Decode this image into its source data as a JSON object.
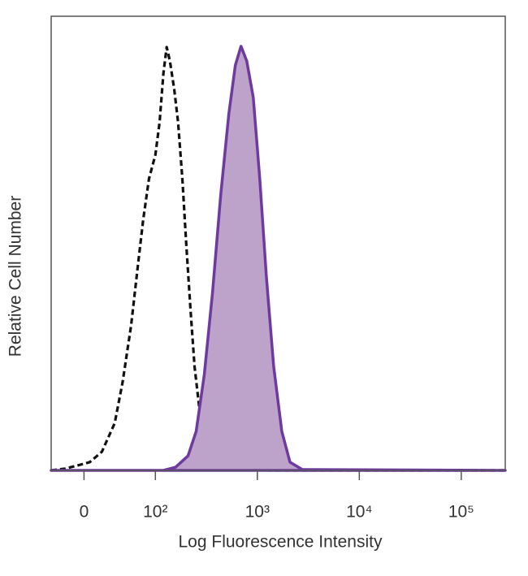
{
  "chart_data": {
    "type": "histogram-overlay",
    "xlabel": "Log Fluorescence Intensity",
    "ylabel": "Relative Cell Number",
    "xscale": "symlog",
    "xlinthresh": 100,
    "xlim": [
      -46,
      270000
    ],
    "xticks": [
      0,
      {
        "value": 100,
        "label": "10²"
      },
      {
        "value": 1000,
        "label": "10³"
      },
      {
        "value": 10000,
        "label": "10⁴"
      },
      {
        "value": 100000,
        "label": "10⁵"
      }
    ],
    "ylim": [
      0,
      100
    ],
    "series": [
      {
        "color": "#111111",
        "style": "dashed",
        "filled": false,
        "x": [
          -46,
          -26,
          -9,
          8,
          25,
          43,
          54,
          66,
          75,
          83,
          91,
          100,
          110,
          120,
          129,
          139,
          153,
          167,
          184,
          201,
          221,
          242,
          275,
          331,
          437,
          631,
          1318,
          270000
        ],
        "values": [
          0,
          0.4,
          1.1,
          1.8,
          4.1,
          10.4,
          19.4,
          31.9,
          44.4,
          55.2,
          64.2,
          69.5,
          76.7,
          87.5,
          93.2,
          90.1,
          83.9,
          76.7,
          64.2,
          49.8,
          35.5,
          22.9,
          12.1,
          4.1,
          1.1,
          0.4,
          0,
          0
        ]
      },
      {
        "color": "#6f3aa0",
        "fill": "#bda3c9",
        "style": "solid",
        "filled": true,
        "x": [
          -46,
          120,
          158,
          209,
          251,
          302,
          363,
          437,
          525,
          608,
          692,
          787,
          912,
          1057,
          1225,
          1445,
          1738,
          2089,
          2754,
          270000
        ],
        "values": [
          0,
          0,
          0.7,
          3.2,
          8.6,
          21.1,
          39.1,
          60.6,
          78.5,
          89.2,
          93.4,
          90.1,
          82.1,
          64.2,
          42.7,
          22.9,
          8.6,
          1.8,
          0.2,
          0
        ]
      }
    ]
  }
}
